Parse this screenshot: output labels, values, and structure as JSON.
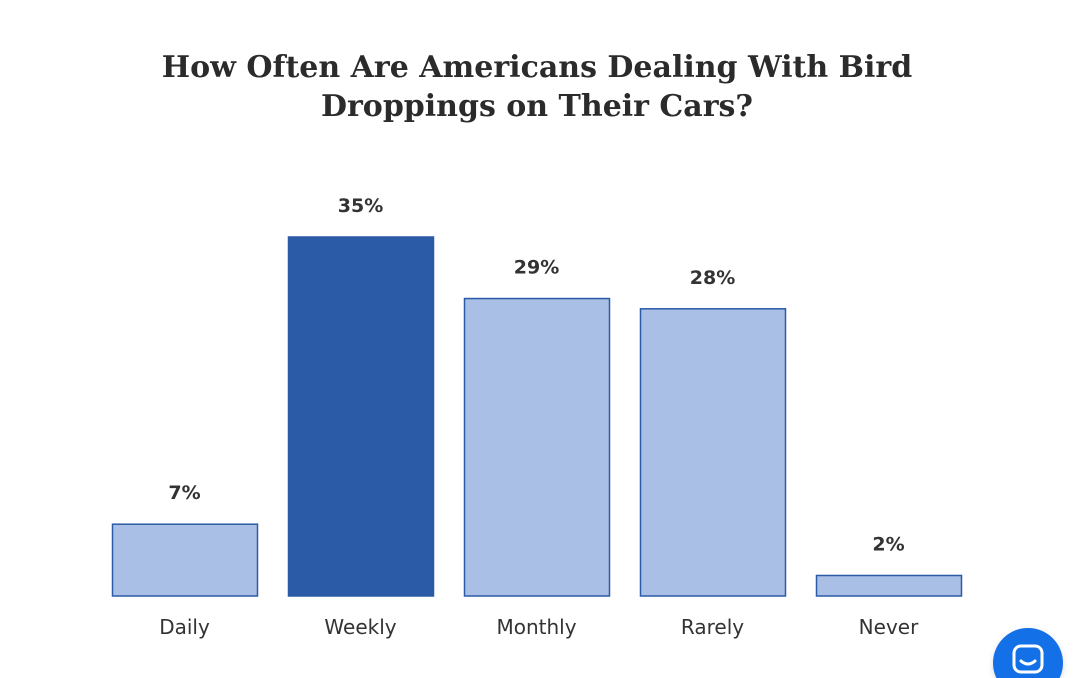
{
  "colors": {
    "bar": "#aabfe6",
    "bar_highlight": "#2b5ba6",
    "bar_stroke": "#2b5ba6",
    "text": "#333333",
    "chat_button": "#1470e6"
  },
  "chart_data": {
    "type": "bar",
    "title_lines": [
      "How Often Are Americans Dealing With Bird",
      "Droppings on Their Cars?"
    ],
    "categories": [
      "Daily",
      "Weekly",
      "Monthly",
      "Rarely",
      "Never"
    ],
    "values": [
      7,
      35,
      29,
      28,
      2
    ],
    "value_labels": [
      "7%",
      "35%",
      "29%",
      "28%",
      "2%"
    ],
    "highlight_index": 1,
    "ylim": [
      0,
      35
    ],
    "grid": false,
    "legend": "none"
  },
  "chat_widget": {
    "icon": "chat-icon"
  }
}
